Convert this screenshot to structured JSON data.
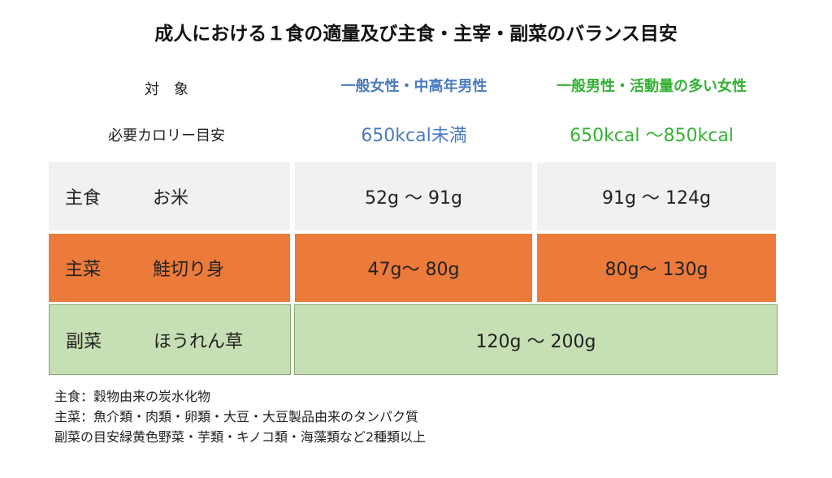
{
  "title": "成人における１食の適量及び主食・主宰・副菜のバランス目安",
  "header": {
    "target_label": "対　象",
    "kcal_label": "必要カロリー目安",
    "columns": [
      {
        "name": "一般女性・中高年男性",
        "kcal": "650kcal未満",
        "color": "#4a7bbf"
      },
      {
        "name": "一般男性・活動量の多い女性",
        "kcal": "650kcal ～850kcal",
        "color": "#33b233"
      }
    ]
  },
  "rows": [
    {
      "category": "主食",
      "food": "お米",
      "col1": "52g ～ 91g",
      "col2": "91g ～ 124g",
      "color": "#f1f1f1"
    },
    {
      "category": "主菜",
      "food": "鮭切り身",
      "col1": "47g～ 80g",
      "col2": "80g～ 130g",
      "color": "#ec7a3a"
    },
    {
      "category": "副菜",
      "food": "ほうれん草",
      "merged": "120g ～ 200g",
      "color": "#c7dfb4"
    }
  ],
  "notes": [
    "主食：穀物由来の炭水化物",
    "主菜：魚介類・肉類・卵類・大豆・大豆製品由来のタンパク質",
    "副菜の目安緑黄色野菜・芋類・キノコ類・海藻類など2種類以上"
  ]
}
